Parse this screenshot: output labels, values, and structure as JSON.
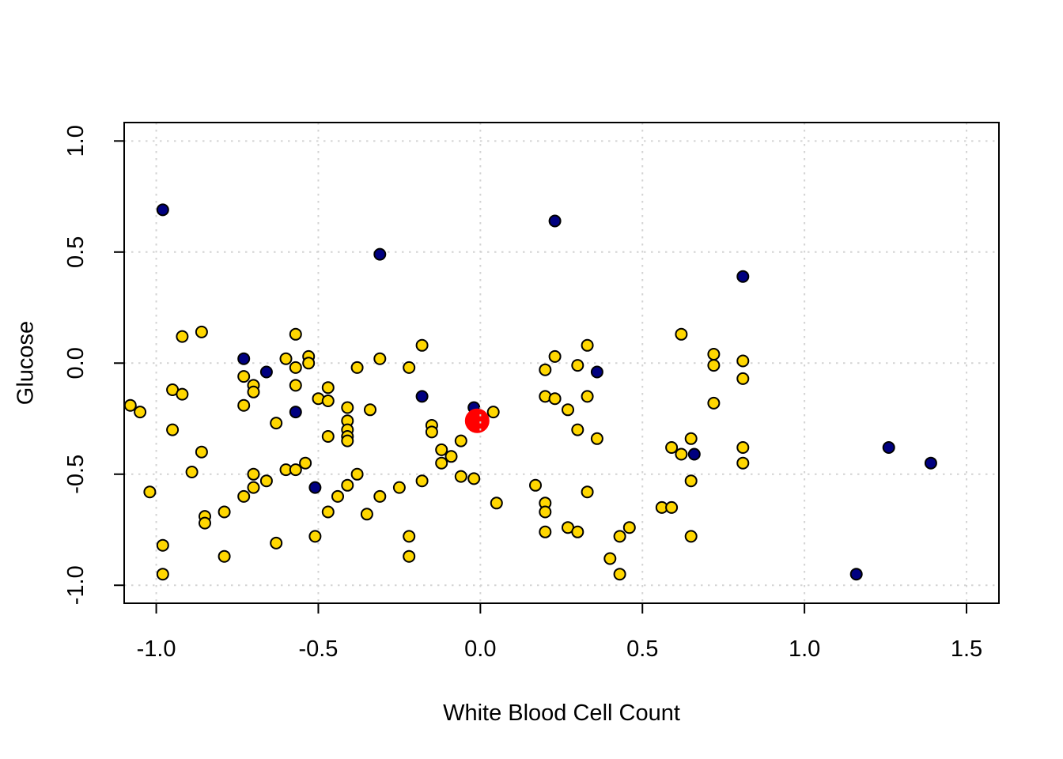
{
  "chart_data": {
    "type": "scatter",
    "title": "",
    "xlabel": "White Blood Cell Count",
    "ylabel": "Glucose",
    "xlim": [
      -1.099,
      1.6
    ],
    "ylim": [
      -1.081,
      1.083
    ],
    "xticks": [
      -1.0,
      -0.5,
      0.0,
      0.5,
      1.0,
      1.5
    ],
    "xtick_labels": [
      "-1.0",
      "-0.5",
      "0.0",
      "0.5",
      "1.0",
      "1.5"
    ],
    "yticks": [
      -1.0,
      -0.5,
      0.0,
      0.5,
      1.0
    ],
    "ytick_labels": [
      "-1.0",
      "-0.5",
      "0.0",
      "0.5",
      "1.0"
    ],
    "grid": {
      "on": true,
      "style": "dotted",
      "color": "#d3d3d3"
    },
    "legend": "none",
    "colors": {
      "yellow_fill": "#FFD700",
      "navy_fill": "#000080",
      "red_fill": "#FF0000",
      "point_outline": "#000000",
      "axis": "#000000",
      "background": "#FFFFFF"
    },
    "series": [
      {
        "name": "navy-point-under-red",
        "color": "#000080",
        "outline": "#000000",
        "radius": 7,
        "below_grid": true,
        "points": [
          [
            -0.02,
            -0.2
          ]
        ]
      },
      {
        "name": "red-center-point",
        "color": "#FF0000",
        "outline": "#FF0000",
        "radius": 14.5,
        "below_grid": true,
        "points": [
          [
            -0.01,
            -0.26
          ]
        ]
      },
      {
        "name": "yellow-points",
        "color": "#FFD700",
        "outline": "#000000",
        "radius": 7,
        "below_grid": false,
        "points": [
          [
            -0.92,
            0.12
          ],
          [
            -0.86,
            0.14
          ],
          [
            -0.57,
            0.13
          ],
          [
            -0.6,
            0.02
          ],
          [
            -0.53,
            0.03
          ],
          [
            -0.57,
            -0.02
          ],
          [
            -0.53,
            0.0
          ],
          [
            -0.73,
            -0.06
          ],
          [
            -0.7,
            -0.1
          ],
          [
            -0.7,
            -0.13
          ],
          [
            -0.57,
            -0.1
          ],
          [
            -0.95,
            -0.12
          ],
          [
            -0.92,
            -0.14
          ],
          [
            -1.08,
            -0.19
          ],
          [
            -1.05,
            -0.22
          ],
          [
            -0.73,
            -0.19
          ],
          [
            -0.5,
            -0.16
          ],
          [
            -0.47,
            -0.11
          ],
          [
            -0.47,
            -0.17
          ],
          [
            -0.63,
            -0.27
          ],
          [
            -0.95,
            -0.3
          ],
          [
            -0.41,
            -0.2
          ],
          [
            -0.34,
            -0.21
          ],
          [
            -0.38,
            -0.02
          ],
          [
            -0.31,
            0.02
          ],
          [
            -0.22,
            -0.02
          ],
          [
            -0.41,
            -0.26
          ],
          [
            -0.41,
            -0.3
          ],
          [
            -0.41,
            -0.33
          ],
          [
            -0.47,
            -0.33
          ],
          [
            -0.41,
            -0.35
          ],
          [
            -0.86,
            -0.4
          ],
          [
            -0.89,
            -0.49
          ],
          [
            -1.02,
            -0.58
          ],
          [
            -0.7,
            -0.5
          ],
          [
            -0.66,
            -0.53
          ],
          [
            -0.7,
            -0.56
          ],
          [
            -0.73,
            -0.6
          ],
          [
            -0.6,
            -0.48
          ],
          [
            -0.57,
            -0.48
          ],
          [
            -0.54,
            -0.45
          ],
          [
            -0.44,
            -0.6
          ],
          [
            -0.41,
            -0.55
          ],
          [
            -0.38,
            -0.5
          ],
          [
            -0.47,
            -0.67
          ],
          [
            -0.35,
            -0.68
          ],
          [
            -0.31,
            -0.6
          ],
          [
            -0.25,
            -0.56
          ],
          [
            -0.79,
            -0.67
          ],
          [
            -0.85,
            -0.69
          ],
          [
            -0.85,
            -0.72
          ],
          [
            -0.51,
            -0.78
          ],
          [
            -0.63,
            -0.81
          ],
          [
            -0.98,
            -0.82
          ],
          [
            -0.79,
            -0.87
          ],
          [
            -0.98,
            -0.95
          ],
          [
            -0.22,
            -0.78
          ],
          [
            -0.22,
            -0.87
          ],
          [
            -0.18,
            0.08
          ],
          [
            -0.15,
            -0.28
          ],
          [
            -0.15,
            -0.31
          ],
          [
            -0.06,
            -0.35
          ],
          [
            -0.12,
            -0.39
          ],
          [
            -0.09,
            -0.42
          ],
          [
            -0.12,
            -0.45
          ],
          [
            0.04,
            -0.22
          ],
          [
            0.23,
            0.03
          ],
          [
            0.2,
            -0.03
          ],
          [
            0.3,
            -0.01
          ],
          [
            0.33,
            0.08
          ],
          [
            0.2,
            -0.15
          ],
          [
            0.23,
            -0.16
          ],
          [
            0.27,
            -0.21
          ],
          [
            0.33,
            -0.15
          ],
          [
            0.3,
            -0.3
          ],
          [
            0.36,
            -0.34
          ],
          [
            -0.06,
            -0.51
          ],
          [
            -0.02,
            -0.52
          ],
          [
            -0.18,
            -0.53
          ],
          [
            0.05,
            -0.63
          ],
          [
            0.17,
            -0.55
          ],
          [
            0.2,
            -0.63
          ],
          [
            0.2,
            -0.67
          ],
          [
            0.33,
            -0.58
          ],
          [
            0.2,
            -0.76
          ],
          [
            0.27,
            -0.74
          ],
          [
            0.3,
            -0.76
          ],
          [
            0.43,
            -0.78
          ],
          [
            0.46,
            -0.74
          ],
          [
            0.4,
            -0.88
          ],
          [
            0.43,
            -0.95
          ],
          [
            0.62,
            0.13
          ],
          [
            0.72,
            0.04
          ],
          [
            0.72,
            -0.01
          ],
          [
            0.81,
            0.01
          ],
          [
            0.81,
            -0.07
          ],
          [
            0.72,
            -0.18
          ],
          [
            0.65,
            -0.34
          ],
          [
            0.59,
            -0.38
          ],
          [
            0.62,
            -0.41
          ],
          [
            0.81,
            -0.38
          ],
          [
            0.81,
            -0.45
          ],
          [
            0.65,
            -0.53
          ],
          [
            0.56,
            -0.65
          ],
          [
            0.59,
            -0.65
          ],
          [
            0.65,
            -0.78
          ]
        ]
      },
      {
        "name": "navy-points",
        "color": "#000080",
        "outline": "#000000",
        "radius": 7,
        "below_grid": false,
        "points": [
          [
            -0.98,
            0.69
          ],
          [
            -0.31,
            0.49
          ],
          [
            0.23,
            0.64
          ],
          [
            0.81,
            0.39
          ],
          [
            -0.73,
            0.02
          ],
          [
            -0.66,
            -0.04
          ],
          [
            -0.57,
            -0.22
          ],
          [
            -0.18,
            -0.15
          ],
          [
            0.36,
            -0.04
          ],
          [
            -0.51,
            -0.56
          ],
          [
            0.66,
            -0.41
          ],
          [
            1.26,
            -0.38
          ],
          [
            1.39,
            -0.45
          ],
          [
            1.16,
            -0.95
          ]
        ]
      }
    ]
  }
}
